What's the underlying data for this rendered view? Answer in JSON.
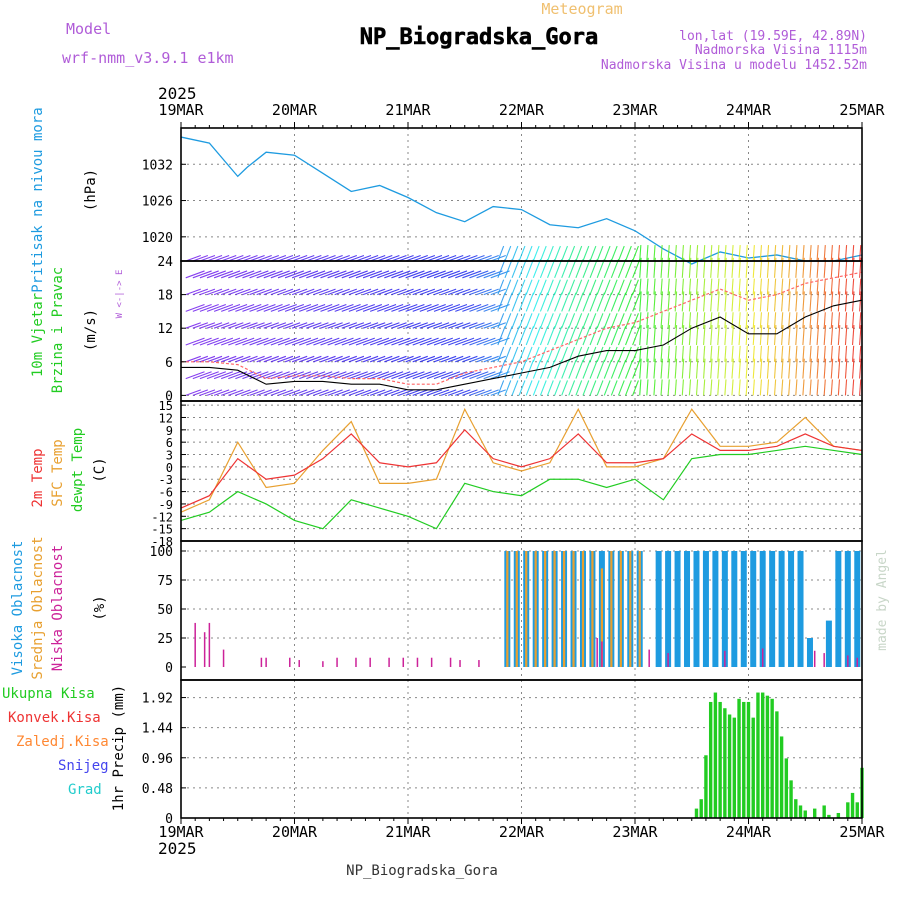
{
  "header": {
    "model_label": "Model",
    "model_name": "wrf-nmm_v3.9.1 e1km",
    "meteogram_label": "Meteogram",
    "station": "NP_Biogradska_Gora",
    "lonlat": "lon,lat (19.59E, 42.89N)",
    "altitude": "Nadmorska Visina 1115m",
    "model_altitude": "Nadmorska Visina u modelu 1452.52m",
    "footer": "NP_Biogradska_Gora",
    "credit": "made by Angel"
  },
  "time_axis": {
    "year": "2025",
    "labels": [
      "19MAR",
      "20MAR",
      "21MAR",
      "22MAR",
      "23MAR",
      "24MAR",
      "25MAR"
    ]
  },
  "colors": {
    "pressure": "#1e9be0",
    "t2m": "#ee3333",
    "sfc": "#e8a030",
    "dew": "#22cc22",
    "low_cloud": "#cc2299",
    "mid_cloud": "#e8a030",
    "high_cloud": "#1e9be0",
    "precip": "#22cc22",
    "model_title": "#b05cd8",
    "meteogram_title": "#f0c070"
  },
  "panels": {
    "pressure": {
      "ylabel": "Pritisak na nivou mora",
      "unit": "(hPa)",
      "ticks": [
        "1020",
        "1026",
        "1032"
      ]
    },
    "wind": {
      "ylabel1": "10m Vjetar",
      "ylabel2": "Brzina i Pravac",
      "unit": "(m/s)",
      "ticks": [
        "0",
        "6",
        "12",
        "18",
        "24"
      ],
      "compass": "W <-|-> E"
    },
    "temp": {
      "ylabel1": "2m Temp",
      "ylabel2": "SFC Temp",
      "ylabel3": "dewpt Temp",
      "unit": "(C)",
      "ticks": [
        "-18",
        "-15",
        "-12",
        "-9",
        "-6",
        "-3",
        "0",
        "3",
        "6",
        "9",
        "12",
        "15"
      ]
    },
    "cloud": {
      "ylabel1": "Visoka Oblacnost",
      "ylabel2": "Srednja Oblacnost",
      "ylabel3": "Niska Oblacnost",
      "unit": "(%)",
      "ticks": [
        "0",
        "25",
        "50",
        "75",
        "100"
      ]
    },
    "precip": {
      "ylabel": "1hr Precip (mm)",
      "ticks": [
        "0",
        "0.48",
        "0.96",
        "1.44",
        "1.92"
      ],
      "legend": [
        "Ukupna Kisa",
        "Konvek.Kisa",
        "Zaledj.Kisa",
        "Snijeg",
        "Grad"
      ],
      "legend_colors": [
        "#22cc22",
        "#ee3333",
        "#ff8833",
        "#4444ee",
        "#22cccc"
      ]
    }
  },
  "chart_data": [
    {
      "type": "line",
      "title": "Pritisak na nivou mora",
      "ylabel": "(hPa)",
      "ylim": [
        1016,
        1038
      ],
      "x_unit": "hours since 19MAR 00",
      "x": [
        0,
        6,
        12,
        14,
        18,
        24,
        30,
        36,
        42,
        48,
        54,
        60,
        66,
        72,
        78,
        84,
        90,
        96,
        102,
        108,
        114,
        120,
        126,
        132,
        138,
        144
      ],
      "series": [
        {
          "values": [
            1036.5,
            1035.5,
            1030.0,
            1031.5,
            1034.0,
            1033.5,
            1030.5,
            1027.5,
            1028.5,
            1026.5,
            1024.0,
            1022.5,
            1025.0,
            1024.5,
            1022.0,
            1021.5,
            1023.0,
            1021.0,
            1018.0,
            1015.5,
            1017.5,
            1016.5,
            1017.0,
            1016.0,
            1016.0,
            1017.0
          ]
        }
      ]
    },
    {
      "type": "line",
      "title": "10m Vjetar Brzina i Pravac",
      "ylabel": "(m/s)",
      "ylim": [
        -1,
        24
      ],
      "x_unit": "hours since 19MAR 00",
      "x": [
        0,
        6,
        12,
        18,
        24,
        30,
        36,
        42,
        48,
        54,
        60,
        66,
        72,
        78,
        84,
        90,
        96,
        102,
        108,
        114,
        120,
        126,
        132,
        138,
        144
      ],
      "series": [
        {
          "name": "speed",
          "values": [
            5,
            5,
            4.5,
            2,
            2.5,
            2.5,
            2,
            2,
            1,
            1,
            2,
            3,
            4,
            5,
            7,
            8,
            8,
            9,
            12,
            14,
            11,
            11,
            14,
            16,
            17
          ]
        },
        {
          "name": "gust",
          "values": [
            6,
            6,
            5.5,
            3,
            3.5,
            3.5,
            3,
            3,
            2,
            2,
            4,
            5,
            6,
            8,
            10,
            12,
            13,
            15,
            17,
            19,
            17,
            18,
            20,
            21,
            22
          ]
        }
      ]
    },
    {
      "type": "line",
      "title": "2m Temp / SFC Temp / dewpt Temp",
      "ylabel": "(C)",
      "ylim": [
        -18,
        16
      ],
      "x_unit": "hours since 19MAR 00",
      "x": [
        0,
        6,
        12,
        18,
        24,
        30,
        36,
        42,
        48,
        54,
        60,
        66,
        72,
        78,
        84,
        90,
        96,
        102,
        108,
        114,
        120,
        126,
        132,
        138,
        144
      ],
      "series": [
        {
          "name": "2m Temp",
          "values": [
            -10,
            -7,
            2,
            -3,
            -2,
            2,
            8,
            1,
            0,
            1,
            9,
            2,
            0,
            2,
            8,
            1,
            1,
            2,
            8,
            4,
            4,
            5,
            8,
            5,
            4
          ]
        },
        {
          "name": "SFC Temp",
          "values": [
            -11,
            -8,
            6,
            -5,
            -4,
            4,
            11,
            -4,
            -4,
            -3,
            14,
            1,
            -1,
            1,
            14,
            0,
            0,
            2,
            14,
            5,
            5,
            6,
            12,
            5,
            4
          ]
        },
        {
          "name": "dewpt Temp",
          "values": [
            -13,
            -11,
            -6,
            -9,
            -13,
            -15,
            -8,
            -10,
            -12,
            -15,
            -4,
            -6,
            -7,
            -3,
            -3,
            -5,
            -3,
            -8,
            2,
            3,
            3,
            4,
            5,
            4,
            3
          ]
        }
      ]
    },
    {
      "type": "bar",
      "title": "Oblacnost",
      "ylabel": "(%)",
      "ylim": [
        0,
        100
      ],
      "x_unit": "hours since 19MAR 00",
      "series": [
        {
          "name": "Niska Oblacnost",
          "x": [
            3,
            5,
            6,
            9,
            17,
            18,
            23,
            25,
            30,
            33,
            37,
            40,
            44,
            47,
            50,
            53,
            57,
            59,
            63,
            88,
            89,
            99,
            103,
            115,
            123,
            134,
            136,
            141,
            143
          ],
          "values": [
            38,
            30,
            38,
            15,
            8,
            8,
            8,
            6,
            5,
            8,
            8,
            8,
            8,
            8,
            8,
            8,
            8,
            6,
            6,
            25,
            22,
            15,
            12,
            14,
            16,
            14,
            12,
            10,
            8
          ]
        },
        {
          "name": "Srednja Oblacnost",
          "x": [
            69,
            71,
            73,
            75,
            77,
            79,
            81,
            83,
            85,
            87,
            89,
            91,
            93,
            95,
            97
          ],
          "values": [
            100,
            100,
            100,
            100,
            100,
            100,
            100,
            100,
            100,
            100,
            85,
            100,
            100,
            100,
            100
          ]
        },
        {
          "name": "Visoka Oblacnost",
          "x": [
            69,
            71,
            73,
            75,
            77,
            79,
            81,
            83,
            85,
            87,
            89,
            91,
            93,
            95,
            97,
            101,
            103,
            105,
            107,
            109,
            111,
            113,
            115,
            117,
            119,
            121,
            123,
            125,
            127,
            129,
            131,
            133,
            137,
            139,
            141,
            143
          ],
          "values": [
            100,
            100,
            100,
            100,
            100,
            100,
            100,
            100,
            100,
            100,
            100,
            100,
            100,
            100,
            100,
            100,
            100,
            100,
            100,
            100,
            100,
            100,
            100,
            100,
            100,
            100,
            100,
            100,
            100,
            100,
            100,
            25,
            40,
            100,
            100,
            100
          ]
        }
      ]
    },
    {
      "type": "bar",
      "title": "1hr Precip",
      "ylabel": "(mm)",
      "ylim": [
        0,
        2.2
      ],
      "x_unit": "hours since 19MAR 00",
      "x": [
        109,
        110,
        111,
        112,
        113,
        114,
        115,
        116,
        117,
        118,
        119,
        120,
        121,
        122,
        123,
        124,
        125,
        126,
        127,
        128,
        129,
        130,
        131,
        132,
        134,
        136,
        137,
        139,
        141,
        142,
        143,
        144
      ],
      "series": [
        {
          "name": "Ukupna Kisa",
          "values": [
            0.15,
            0.3,
            1.0,
            1.85,
            2.0,
            1.85,
            1.75,
            1.65,
            1.6,
            1.9,
            1.85,
            1.85,
            1.6,
            2.0,
            2.0,
            1.95,
            1.9,
            1.7,
            1.3,
            0.95,
            0.6,
            0.3,
            0.2,
            0.12,
            0.15,
            0.2,
            0.05,
            0.08,
            0.25,
            0.4,
            0.25,
            0.8
          ]
        }
      ]
    }
  ]
}
